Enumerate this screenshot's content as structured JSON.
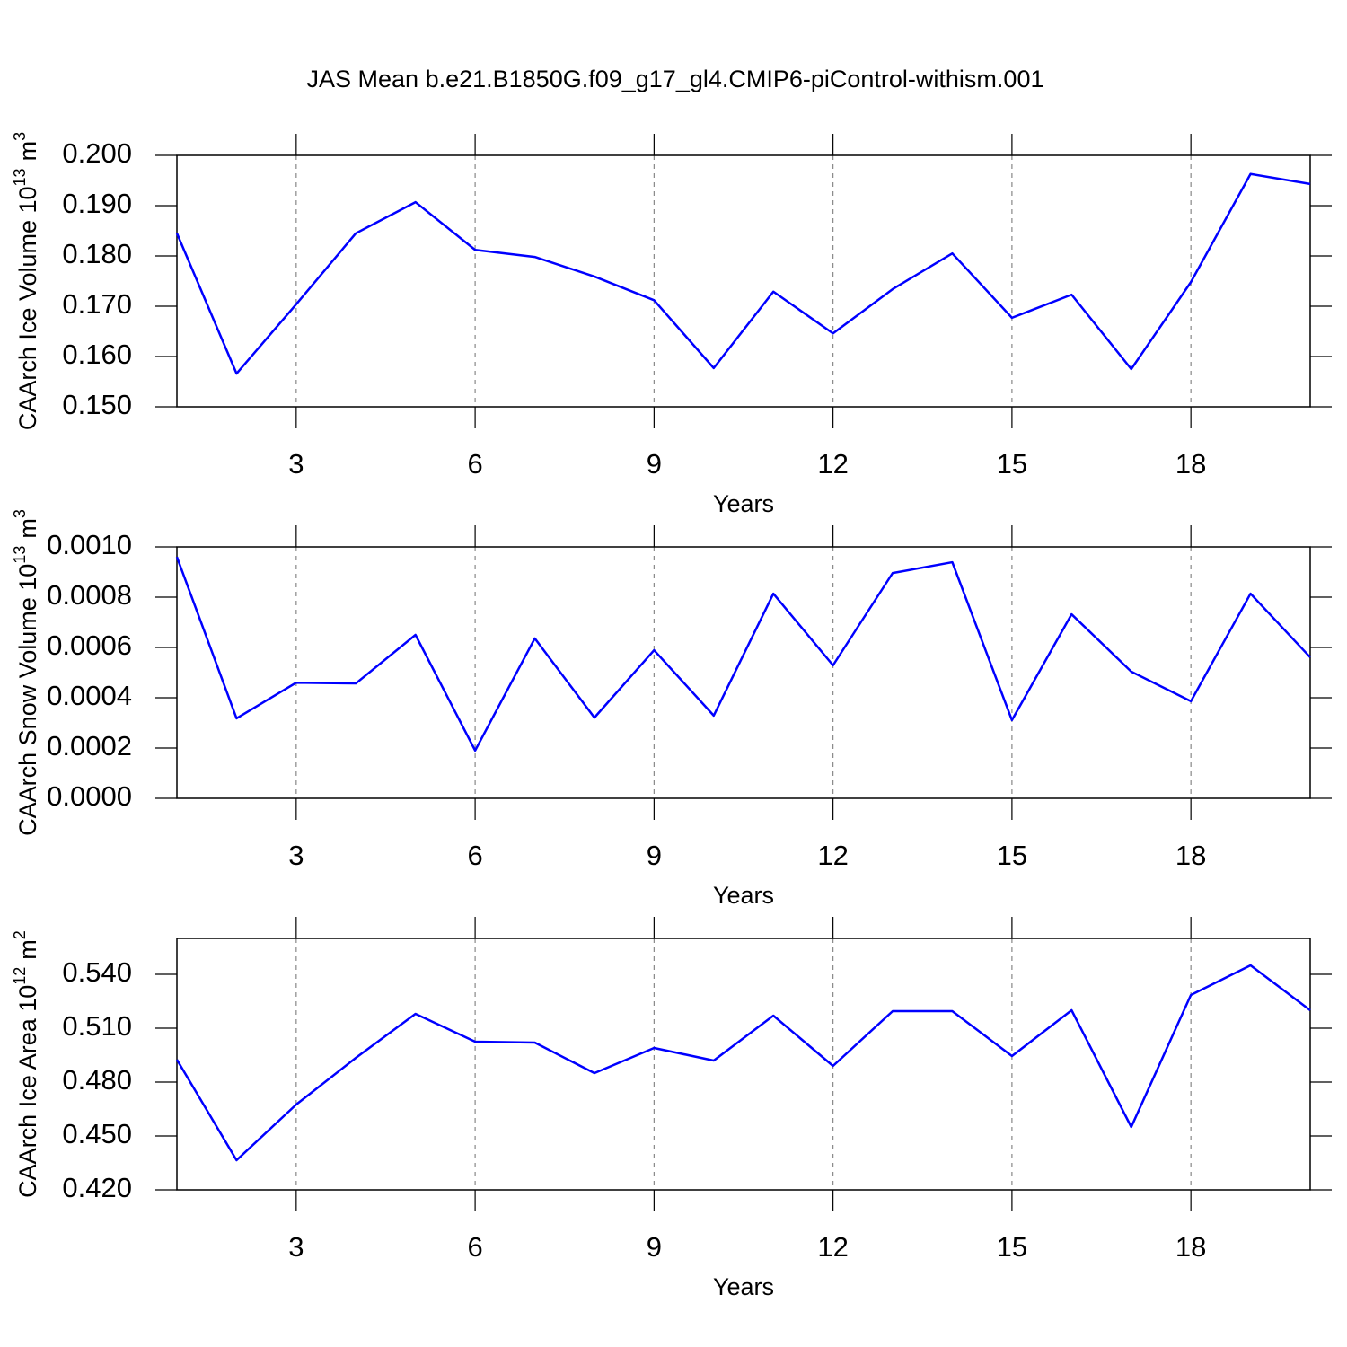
{
  "chart_data": [
    {
      "type": "line",
      "title": "JAS Mean b.e21.B1850G.f09_g17_gl4.CMIP6-piControl-withism.001",
      "ylabel": {
        "base": "CAArch Ice Volume 10",
        "power": "13",
        "unit": "m",
        "unit_power": "3"
      },
      "xlabel": "Years",
      "x": [
        1,
        2,
        3,
        4,
        5,
        6,
        7,
        8,
        9,
        10,
        11,
        12,
        13,
        14,
        15,
        16,
        17,
        18,
        19,
        20
      ],
      "values": [
        0.1845,
        0.1566,
        0.1704,
        0.1845,
        0.1907,
        0.1812,
        0.1798,
        0.1759,
        0.1712,
        0.1577,
        0.1729,
        0.1646,
        0.1734,
        0.1805,
        0.1677,
        0.1723,
        0.1575,
        0.1748,
        0.1963,
        0.1943
      ],
      "color": "#0000ff",
      "xlim": [
        1,
        20
      ],
      "xticks": [
        3,
        6,
        9,
        12,
        15,
        18
      ],
      "ylim": [
        0.15,
        0.2
      ],
      "yticks": [
        {
          "value": 0.15,
          "label": "0.150"
        },
        {
          "value": 0.16,
          "label": "0.160"
        },
        {
          "value": 0.17,
          "label": "0.170"
        },
        {
          "value": 0.18,
          "label": "0.180"
        },
        {
          "value": 0.19,
          "label": "0.190"
        },
        {
          "value": 0.2,
          "label": "0.200"
        }
      ],
      "grid": true
    },
    {
      "type": "line",
      "ylabel": {
        "base": "CAArch Snow Volume 10",
        "power": "13",
        "unit": "m",
        "unit_power": "3"
      },
      "xlabel": "Years",
      "x": [
        1,
        2,
        3,
        4,
        5,
        6,
        7,
        8,
        9,
        10,
        11,
        12,
        13,
        14,
        15,
        16,
        17,
        18,
        19,
        20
      ],
      "values": [
        0.00096,
        0.000318,
        0.00046,
        0.000457,
        0.00065,
        0.00019,
        0.000636,
        0.000321,
        0.000589,
        0.000329,
        0.000814,
        0.000529,
        0.000896,
        0.000939,
        0.000311,
        0.000732,
        0.000504,
        0.000386,
        0.000814,
        0.000561
      ],
      "color": "#0000ff",
      "xlim": [
        1,
        20
      ],
      "xticks": [
        3,
        6,
        9,
        12,
        15,
        18
      ],
      "ylim": [
        0,
        0.001
      ],
      "yticks": [
        {
          "value": 0,
          "label": "0.0000"
        },
        {
          "value": 0.0002,
          "label": "0.0002"
        },
        {
          "value": 0.0004,
          "label": "0.0004"
        },
        {
          "value": 0.0006,
          "label": "0.0006"
        },
        {
          "value": 0.0008,
          "label": "0.0008"
        },
        {
          "value": 0.001,
          "label": "0.0010"
        }
      ],
      "grid": true
    },
    {
      "type": "line",
      "ylabel": {
        "base": "CAArch Ice Area 10",
        "power": "12",
        "unit": "m",
        "unit_power": "2"
      },
      "xlabel": "Years",
      "x": [
        1,
        2,
        3,
        4,
        5,
        6,
        7,
        8,
        9,
        10,
        11,
        12,
        13,
        14,
        15,
        16,
        17,
        18,
        19,
        20
      ],
      "values": [
        0.4925,
        0.4365,
        0.4675,
        0.4935,
        0.518,
        0.5025,
        0.502,
        0.485,
        0.499,
        0.492,
        0.517,
        0.489,
        0.5195,
        0.5195,
        0.4945,
        0.52,
        0.455,
        0.5285,
        0.545,
        0.52
      ],
      "color": "#0000ff",
      "xlim": [
        1,
        20
      ],
      "xticks": [
        3,
        6,
        9,
        12,
        15,
        18
      ],
      "ylim": [
        0.42,
        0.56
      ],
      "yticks": [
        {
          "value": 0.42,
          "label": "0.420"
        },
        {
          "value": 0.45,
          "label": "0.450"
        },
        {
          "value": 0.48,
          "label": "0.480"
        },
        {
          "value": 0.51,
          "label": "0.510"
        },
        {
          "value": 0.54,
          "label": "0.540"
        }
      ],
      "grid": true
    }
  ]
}
